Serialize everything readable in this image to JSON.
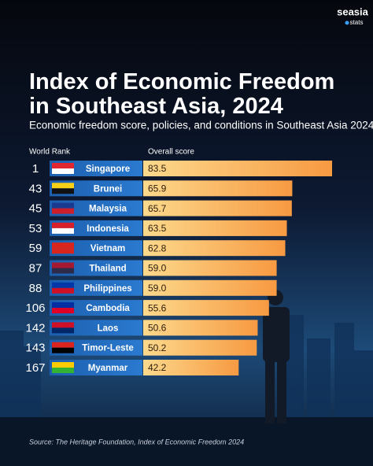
{
  "brand": {
    "name": "seasia",
    "sub": "stats"
  },
  "chart_data": {
    "type": "bar",
    "title": "Index of Economic Freedom in Southeast Asia, 2024",
    "subtitle": "Economic freedom score, policies, and conditions in Southeast Asia 2024",
    "rank_header": "World Rank",
    "value_header": "Overall score",
    "categories": [
      "Singapore",
      "Brunei",
      "Malaysia",
      "Indonesia",
      "Vietnam",
      "Thailand",
      "Philippines",
      "Cambodia",
      "Laos",
      "Timor-Leste",
      "Myanmar"
    ],
    "ranks": [
      1,
      43,
      45,
      53,
      59,
      87,
      88,
      106,
      142,
      143,
      167
    ],
    "values": [
      83.5,
      65.9,
      65.7,
      63.5,
      62.8,
      59.0,
      59.0,
      55.6,
      50.6,
      50.2,
      42.2
    ],
    "value_labels": [
      "83.5",
      "65.9",
      "65.7",
      "63.5",
      "62.8",
      "59.0",
      "59.0",
      "55.6",
      "50.6",
      "50.2",
      "42.2"
    ],
    "color": "#f79a42",
    "source": "Source: The Heritage Foundation, Index of Economic Freedom 2024"
  }
}
